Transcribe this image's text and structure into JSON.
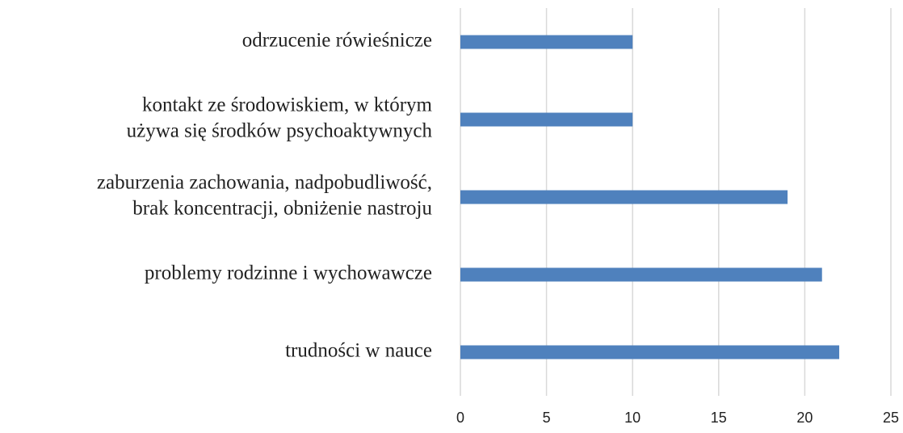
{
  "chart_data": {
    "type": "bar",
    "orientation": "horizontal",
    "categories": [
      [
        "odrzucenie rówieśnicze"
      ],
      [
        "kontakt ze środowiskiem, w którym",
        "używa się środków psychoaktywnych"
      ],
      [
        "zaburzenia zachowania, nadpobudliwość,",
        "brak koncentracji, obniżenie nastroju"
      ],
      [
        "problemy rodzinne i wychowawcze"
      ],
      [
        "trudności w nauce"
      ]
    ],
    "values": [
      10,
      10,
      19,
      21,
      22
    ],
    "color": "#4f81bd",
    "xlim": [
      0,
      25
    ],
    "xticks": [
      0,
      5,
      10,
      15,
      20,
      25
    ],
    "grid": true
  }
}
